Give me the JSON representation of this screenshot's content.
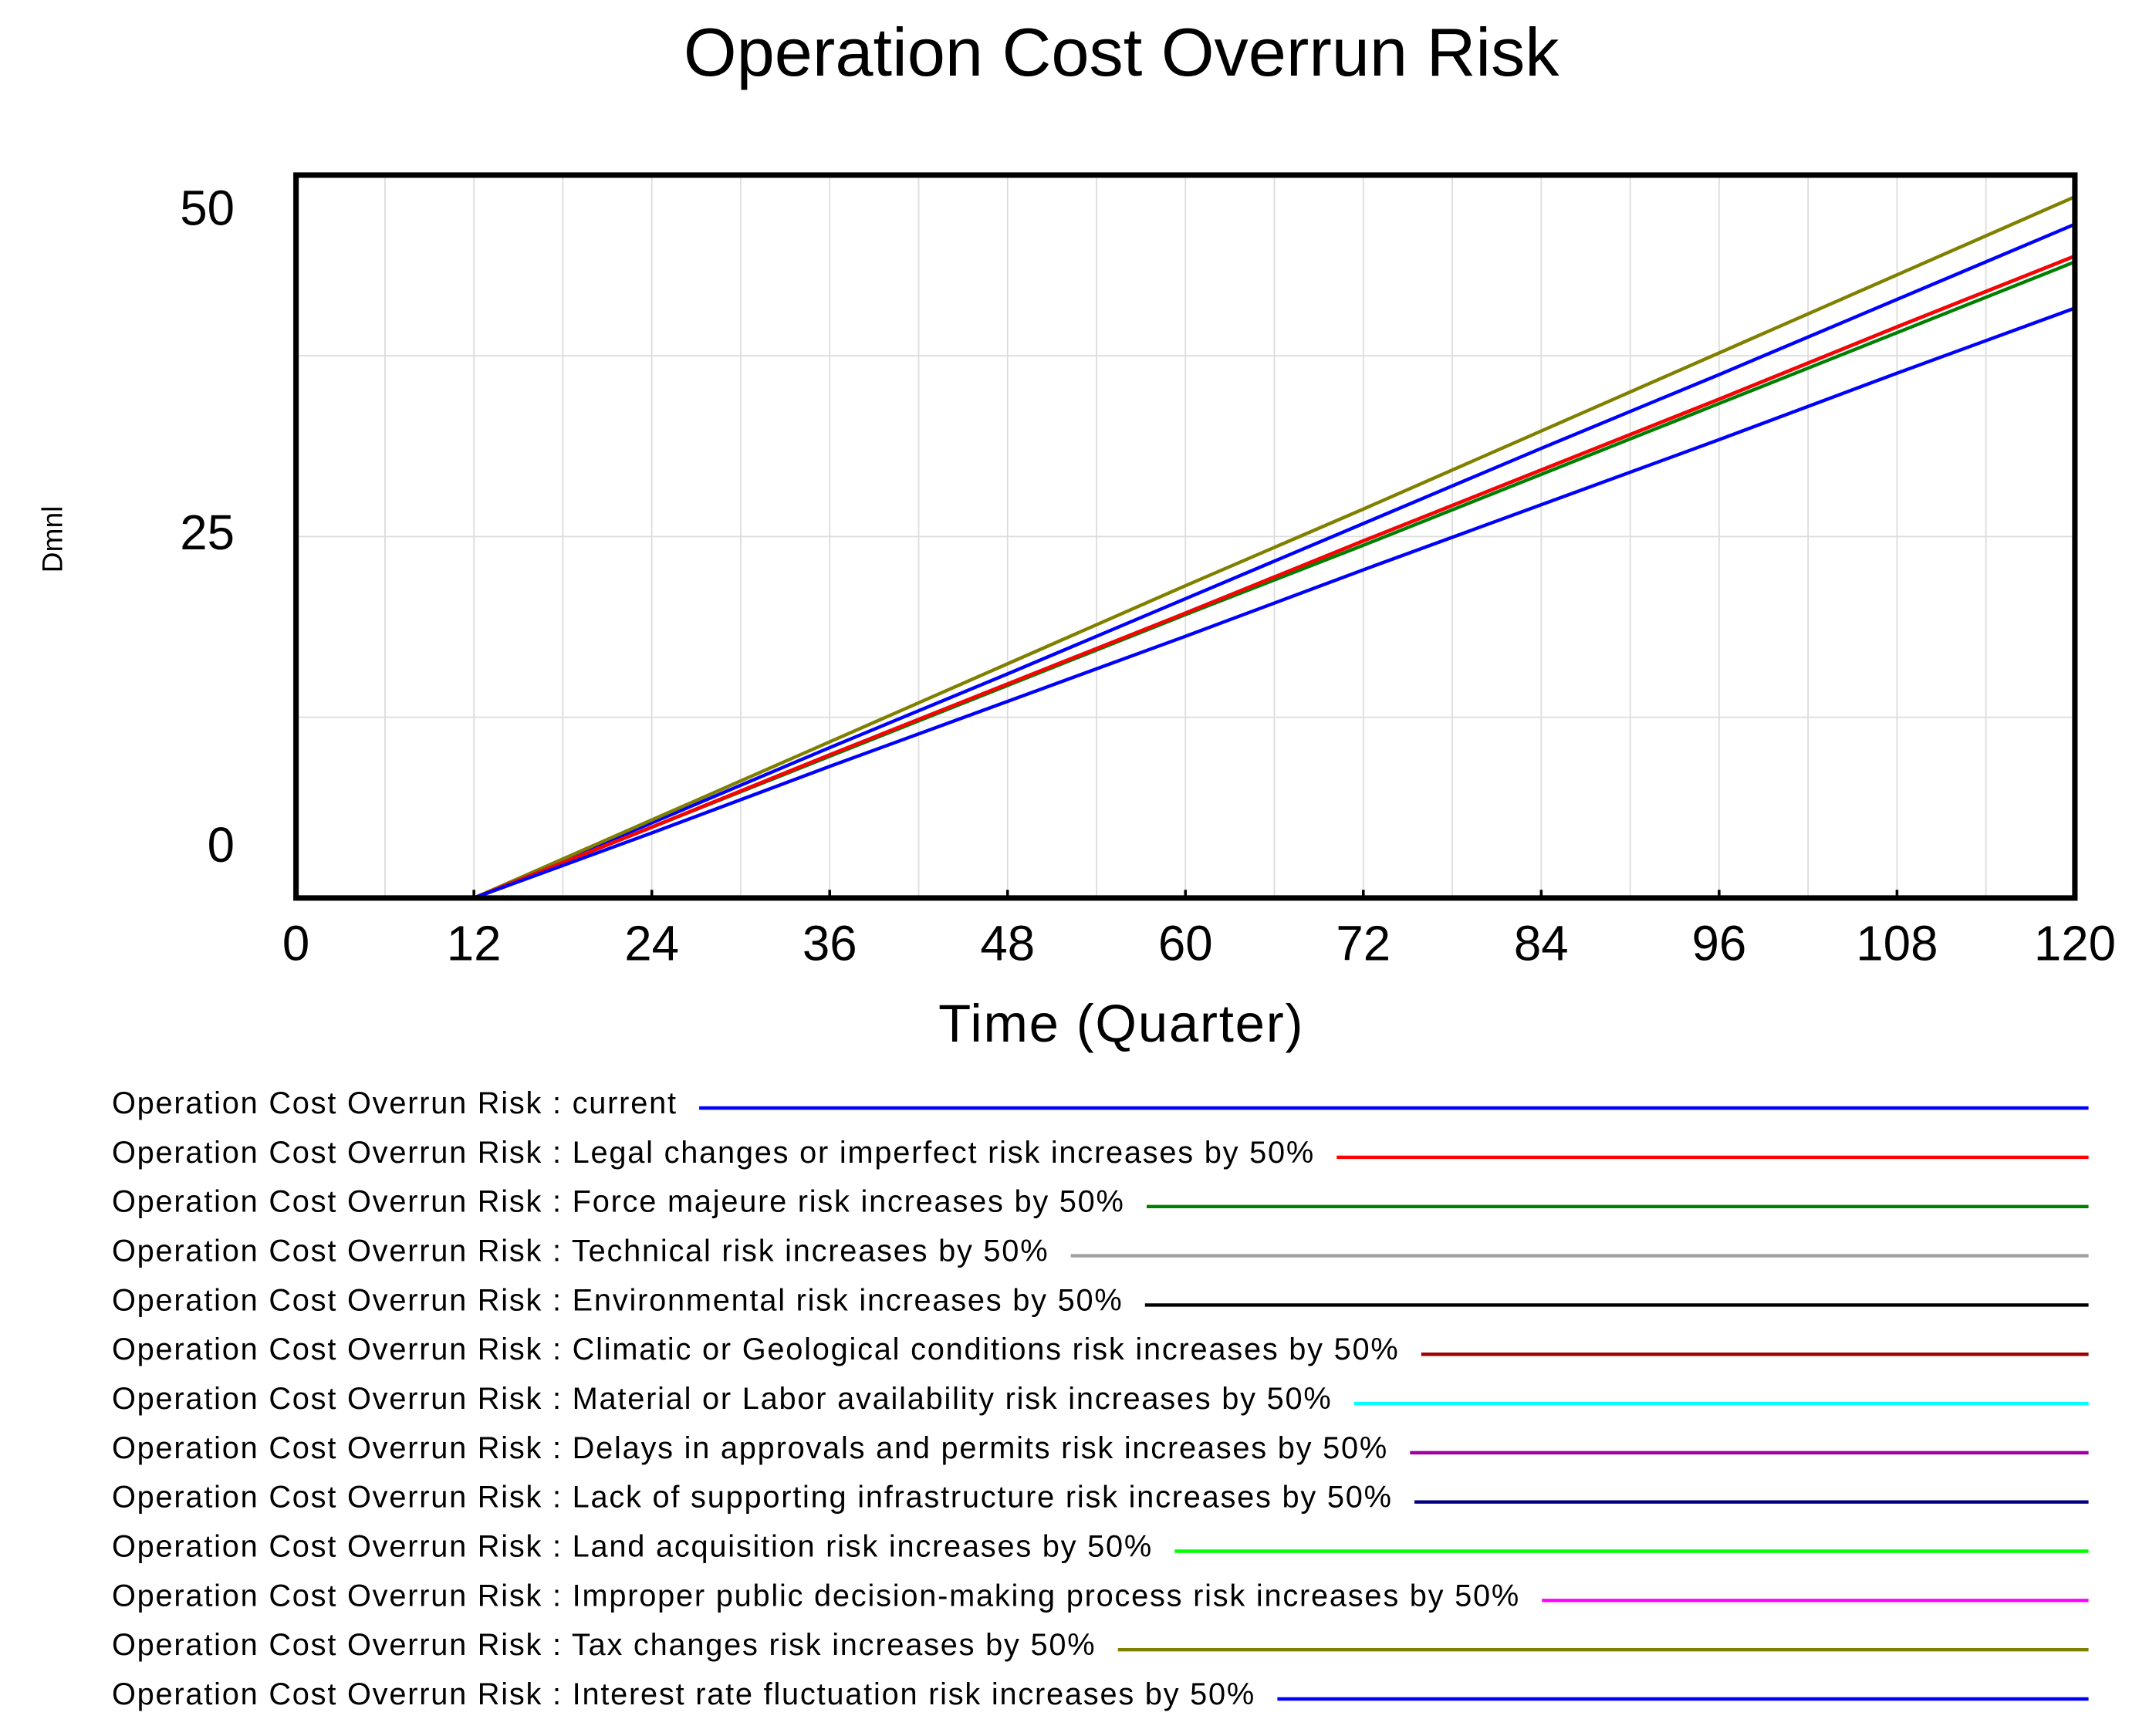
{
  "chart_data": {
    "type": "line",
    "title": "Operation Cost Overrun Risk",
    "x_label": "Time (Quarter)",
    "y_label": "Dmnl",
    "x": [
      0,
      12,
      24,
      36,
      48,
      60,
      72,
      84,
      96,
      108,
      120
    ],
    "xlim": [
      0,
      120
    ],
    "xticks": [
      0,
      12,
      24,
      36,
      48,
      60,
      72,
      84,
      96,
      108,
      120
    ],
    "ylim": [
      0,
      50
    ],
    "yticks": [
      0,
      25,
      50
    ],
    "grid": true,
    "series": [
      {
        "name": "Operation Cost Overrun Risk : current",
        "color": "#0000ff",
        "values": [
          0,
          0,
          4.5,
          9.1,
          13.6,
          18.1,
          22.7,
          27.2,
          31.7,
          36.3,
          40.8
        ]
      },
      {
        "name": "Operation Cost Overrun Risk : Legal changes or imperfect risk increases by 50%",
        "color": "#ff0000",
        "values": [
          0,
          0,
          4.9,
          9.9,
          14.8,
          19.7,
          24.7,
          29.6,
          34.5,
          39.5,
          44.4
        ]
      },
      {
        "name": "Operation Cost Overrun Risk : Force majeure risk increases by 50%",
        "color": "#008000",
        "values": [
          0,
          0,
          4.9,
          9.8,
          14.7,
          19.6,
          24.4,
          29.3,
          34.2,
          39.1,
          44.0
        ]
      },
      {
        "name": "Operation Cost Overrun Risk : Technical risk increases by 50%",
        "color": "#a0a0a0",
        "values": [
          0,
          0,
          4.9,
          9.9,
          14.8,
          19.7,
          24.7,
          29.6,
          34.5,
          39.5,
          44.4
        ]
      },
      {
        "name": "Operation Cost Overrun Risk : Environmental risk increases by 50%",
        "color": "#000000",
        "values": [
          0,
          0,
          4.9,
          9.9,
          14.8,
          19.7,
          24.7,
          29.6,
          34.5,
          39.5,
          44.4
        ]
      },
      {
        "name": "Operation Cost Overrun Risk : Climatic or Geological conditions risk increases by 50%",
        "color": "#a00000",
        "values": [
          0,
          0,
          4.9,
          9.9,
          14.8,
          19.7,
          24.7,
          29.6,
          34.5,
          39.5,
          44.4
        ]
      },
      {
        "name": "Operation Cost Overrun Risk : Material or Labor availability risk increases by 50%",
        "color": "#00ffff",
        "values": [
          0,
          0,
          4.9,
          9.9,
          14.8,
          19.7,
          24.7,
          29.6,
          34.5,
          39.5,
          44.4
        ]
      },
      {
        "name": "Operation Cost Overrun Risk : Delays in approvals and permits risk increases by 50%",
        "color": "#a000a0",
        "values": [
          0,
          0,
          4.9,
          9.9,
          14.8,
          19.7,
          24.7,
          29.6,
          34.5,
          39.5,
          44.4
        ]
      },
      {
        "name": "Operation Cost Overrun Risk : Lack of supporting infrastructure risk increases by 50%",
        "color": "#000080",
        "values": [
          0,
          0,
          4.9,
          9.9,
          14.8,
          19.7,
          24.7,
          29.6,
          34.5,
          39.5,
          44.4
        ]
      },
      {
        "name": "Operation Cost Overrun Risk : Land acquisition risk increases by 50%",
        "color": "#00ff00",
        "values": [
          0,
          0,
          4.9,
          9.9,
          14.8,
          19.7,
          24.7,
          29.6,
          34.5,
          39.5,
          44.4
        ]
      },
      {
        "name": "Operation Cost Overrun Risk : Improper public decision-making process risk increases by 50%",
        "color": "#ff00ff",
        "values": [
          0,
          0,
          4.9,
          9.9,
          14.8,
          19.7,
          24.7,
          29.6,
          34.5,
          39.5,
          44.4
        ]
      },
      {
        "name": "Operation Cost Overrun Risk : Tax changes risk increases by 50%",
        "color": "#808000",
        "values": [
          0,
          0,
          5.4,
          10.8,
          16.2,
          21.6,
          26.9,
          32.3,
          37.7,
          43.1,
          48.5
        ]
      },
      {
        "name": "Operation Cost Overrun Risk : Interest rate fluctuation risk increases by 50%",
        "color": "#0000ff",
        "values": [
          0,
          0,
          5.2,
          10.4,
          15.5,
          20.7,
          25.9,
          31.1,
          36.2,
          41.4,
          46.6
        ]
      }
    ]
  }
}
